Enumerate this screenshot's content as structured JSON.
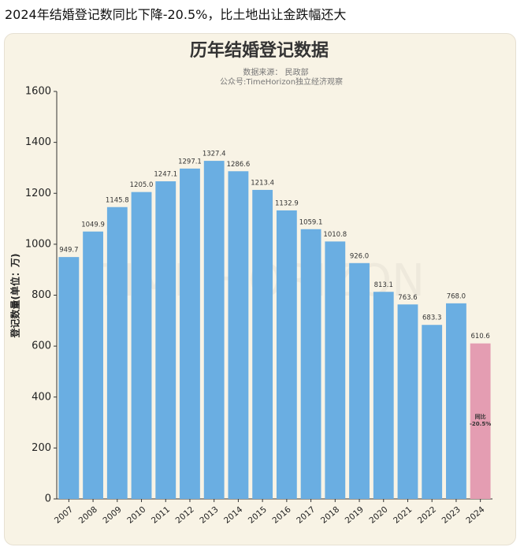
{
  "post": {
    "title": "2024年结婚登记数同比下降-20.5%，比土地出让金跌幅还大"
  },
  "chart_data": {
    "type": "bar",
    "title": "历年结婚登记数据",
    "subtitle": [
      "数据来源： 民政部",
      "公众号:TimeHorizon独立经济观察"
    ],
    "watermark": "TIME HORIZON",
    "y_label": "登记数量(单位：万)",
    "categories": [
      "2007",
      "2008",
      "2009",
      "2010",
      "2011",
      "2012",
      "2013",
      "2014",
      "2015",
      "2016",
      "2017",
      "2018",
      "2019",
      "2020",
      "2021",
      "2022",
      "2023",
      "2024"
    ],
    "values": [
      949.7,
      1049.9,
      1145.8,
      1205,
      1247.1,
      1297.1,
      1327.4,
      1286.6,
      1213.4,
      1132.9,
      1059.1,
      1010.8,
      926,
      813.1,
      763.6,
      683.3,
      768,
      610.6
    ],
    "value_labels": [
      "949.7",
      "1049.9",
      "1145.8",
      "1205.0",
      "1247.1",
      "1297.1",
      "1327.4",
      "1286.6",
      "1213.4",
      "1132.9",
      "1059.1",
      "1010.8",
      "926.0",
      "813.1",
      "763.6",
      "683.3",
      "768.0",
      "610.6"
    ],
    "colors": [
      "#6aaee2",
      "#6aaee2",
      "#6aaee2",
      "#6aaee2",
      "#6aaee2",
      "#6aaee2",
      "#6aaee2",
      "#6aaee2",
      "#6aaee2",
      "#6aaee2",
      "#6aaee2",
      "#6aaee2",
      "#6aaee2",
      "#6aaee2",
      "#6aaee2",
      "#6aaee2",
      "#6aaee2",
      "#e49db2"
    ],
    "annotation": {
      "index": 17,
      "lines": [
        "同比",
        "-20.5%"
      ]
    },
    "ylim": [
      0,
      1600
    ],
    "yticks": [
      0,
      200,
      400,
      600,
      800,
      1000,
      1200,
      1400,
      1600
    ],
    "grid": false
  }
}
